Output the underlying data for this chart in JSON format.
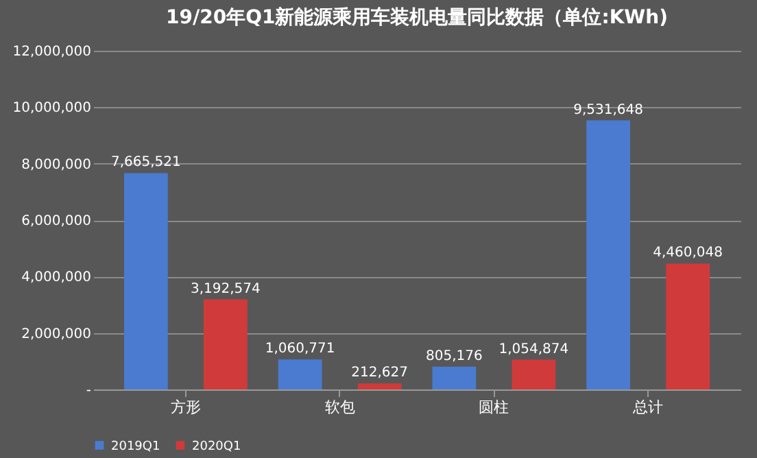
{
  "chart_data": {
    "type": "bar",
    "title": "19/20年Q1新能源乘用车装机电量同比数据（单位:KWh)",
    "categories": [
      "方形",
      "软包",
      "圆柱",
      "总计"
    ],
    "series": [
      {
        "name": "2019Q1",
        "color": "#4a7bd0",
        "values": [
          7665521,
          1060771,
          805176,
          9531648
        ],
        "value_labels": [
          "7,665,521",
          "1,060,771",
          "805,176",
          "9,531,648"
        ]
      },
      {
        "name": "2020Q1",
        "color": "#d03a3a",
        "values": [
          3192574,
          212627,
          1054874,
          4460048
        ],
        "value_labels": [
          "3,192,574",
          "212,627",
          "1,054,874",
          "4,460,048"
        ]
      }
    ],
    "ylim": [
      0,
      12000000
    ],
    "yticks": [
      {
        "value": 0,
        "label": "-"
      },
      {
        "value": 2000000,
        "label": "2,000,000"
      },
      {
        "value": 4000000,
        "label": "4,000,000"
      },
      {
        "value": 6000000,
        "label": "6,000,000"
      },
      {
        "value": 8000000,
        "label": "8,000,000"
      },
      {
        "value": 10000000,
        "label": "10,000,000"
      },
      {
        "value": 12000000,
        "label": "12,000,000"
      }
    ],
    "grid": true,
    "legend": "bottom"
  }
}
